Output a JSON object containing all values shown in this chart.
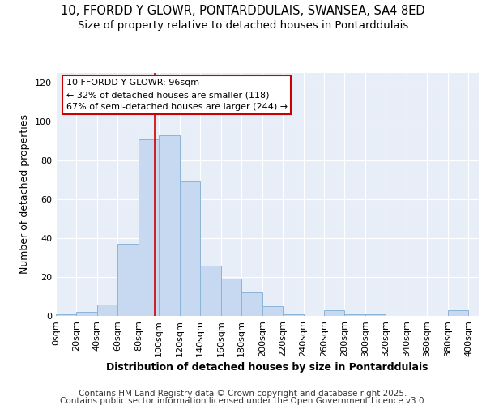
{
  "title1": "10, FFORDD Y GLOWR, PONTARDDULAIS, SWANSEA, SA4 8ED",
  "title2": "Size of property relative to detached houses in Pontarddulais",
  "xlabel": "Distribution of detached houses by size in Pontarddulais",
  "ylabel": "Number of detached properties",
  "bins": [
    0,
    20,
    40,
    60,
    80,
    100,
    120,
    140,
    160,
    180,
    200,
    220,
    240,
    260,
    280,
    300,
    320,
    340,
    360,
    380,
    400
  ],
  "counts": [
    1,
    2,
    6,
    37,
    91,
    93,
    69,
    26,
    19,
    12,
    5,
    1,
    0,
    3,
    1,
    1,
    0,
    0,
    0,
    3
  ],
  "bar_color": "#c6d9f0",
  "bar_edge_color": "#8ab4d8",
  "ref_line_x": 96,
  "ref_line_color": "#cc0000",
  "annotation_text": "10 FFORDD Y GLOWR: 96sqm\n← 32% of detached houses are smaller (118)\n67% of semi-detached houses are larger (244) →",
  "annotation_box_color": "#ffffff",
  "annotation_box_edge_color": "#cc0000",
  "ylim": [
    0,
    125
  ],
  "yticks": [
    0,
    20,
    40,
    60,
    80,
    100,
    120
  ],
  "xtick_labels": [
    "0sqm",
    "20sqm",
    "40sqm",
    "60sqm",
    "80sqm",
    "100sqm",
    "120sqm",
    "140sqm",
    "160sqm",
    "180sqm",
    "200sqm",
    "220sqm",
    "240sqm",
    "260sqm",
    "280sqm",
    "300sqm",
    "320sqm",
    "340sqm",
    "360sqm",
    "380sqm",
    "400sqm"
  ],
  "background_color": "#e8eef8",
  "footer_text1": "Contains HM Land Registry data © Crown copyright and database right 2025.",
  "footer_text2": "Contains public sector information licensed under the Open Government Licence v3.0.",
  "title_fontsize": 10.5,
  "subtitle_fontsize": 9.5,
  "axis_label_fontsize": 9,
  "tick_fontsize": 8,
  "footer_fontsize": 7.5
}
